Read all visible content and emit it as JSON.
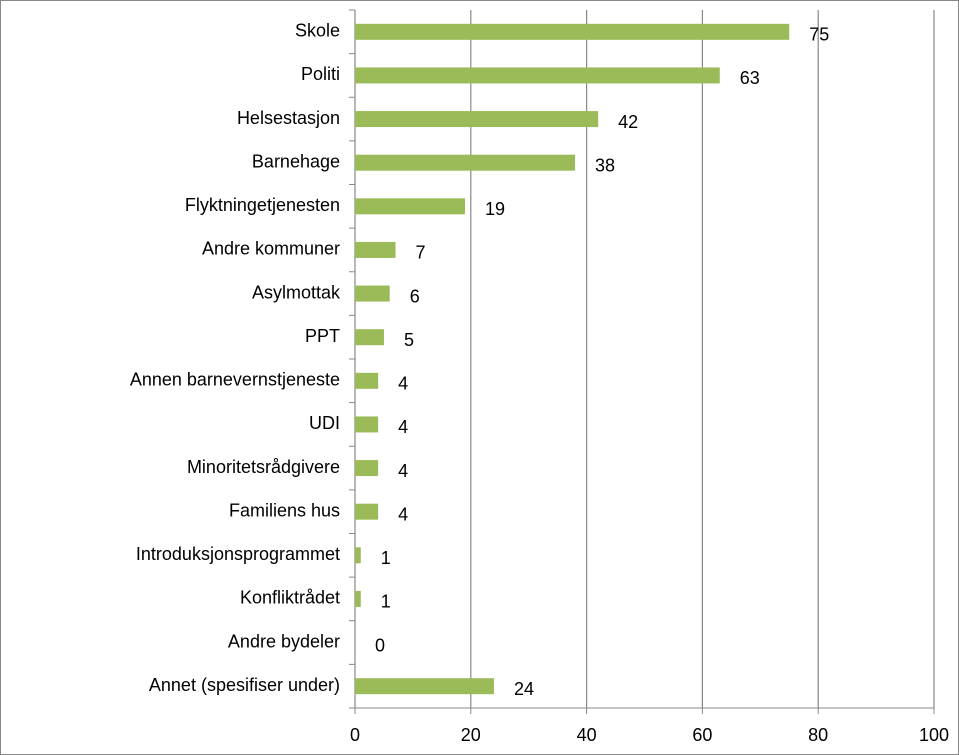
{
  "chart_data": {
    "type": "bar",
    "orientation": "horizontal",
    "categories": [
      "Skole",
      "Politi",
      "Helsestasjon",
      "Barnehage",
      "Flyktningetjenesten",
      "Andre kommuner",
      "Asylmottak",
      "PPT",
      "Annen barnevernstjeneste",
      "UDI",
      "Minoritetsrådgivere",
      "Familiens hus",
      "Introduksjonsprogrammet",
      "Konfliktrådet",
      "Andre bydeler",
      "Annet (spesifiser under)"
    ],
    "values": [
      75,
      63,
      42,
      38,
      19,
      7,
      6,
      5,
      4,
      4,
      4,
      4,
      1,
      1,
      0,
      24
    ],
    "color": "#9bbb59",
    "xlim": [
      0,
      100
    ],
    "xticks": [
      0,
      20,
      40,
      60,
      80,
      100
    ],
    "grid": true
  }
}
